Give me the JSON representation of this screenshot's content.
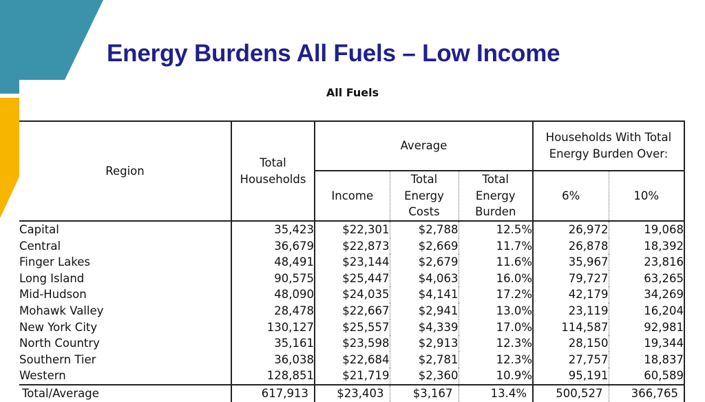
{
  "title": "Energy Burdens All Fuels – Low Income",
  "table_title": "All Fuels",
  "headers": {
    "region": "Region",
    "total_households": "Total Households",
    "average": "Average",
    "income": "Income",
    "total_energy_costs": "Total Energy Costs",
    "total_energy_burden": "Total Energy Burden",
    "households_over": "Households With Total Energy Burden Over:",
    "pct6": "6%",
    "pct10": "10%"
  },
  "rows": [
    [
      "Capital",
      "35,423",
      "$22,301",
      "$2,788",
      "12.5%",
      "26,972",
      "19,068"
    ],
    [
      "Central",
      "36,679",
      "$22,873",
      "$2,669",
      "11.7%",
      "26,878",
      "18,392"
    ],
    [
      "Finger Lakes",
      "48,491",
      "$23,144",
      "$2,679",
      "11.6%",
      "35,967",
      "23,816"
    ],
    [
      "Long Island",
      "90,575",
      "$25,447",
      "$4,063",
      "16.0%",
      "79,727",
      "63,265"
    ],
    [
      "Mid-Hudson",
      "48,090",
      "$24,035",
      "$4,141",
      "17.2%",
      "42,179",
      "34,269"
    ],
    [
      "Mohawk Valley",
      "28,478",
      "$22,667",
      "$2,941",
      "13.0%",
      "23,119",
      "16,204"
    ],
    [
      "New York City",
      "130,127",
      "$25,557",
      "$4,339",
      "17.0%",
      "114,587",
      "92,981"
    ],
    [
      "North Country",
      "35,161",
      "$23,598",
      "$2,913",
      "12.3%",
      "28,150",
      "19,344"
    ],
    [
      "Southern Tier",
      "36,038",
      "$22,684",
      "$2,781",
      "12.3%",
      "27,757",
      "18,837"
    ],
    [
      "Western",
      "128,851",
      "$21,719",
      "$2,360",
      "10.9%",
      "95,191",
      "60,589"
    ]
  ],
  "total": [
    "Total/Average",
    "617,913",
    "$23,403",
    "$3,167",
    "13.4%",
    "500,527",
    "366,765"
  ]
}
